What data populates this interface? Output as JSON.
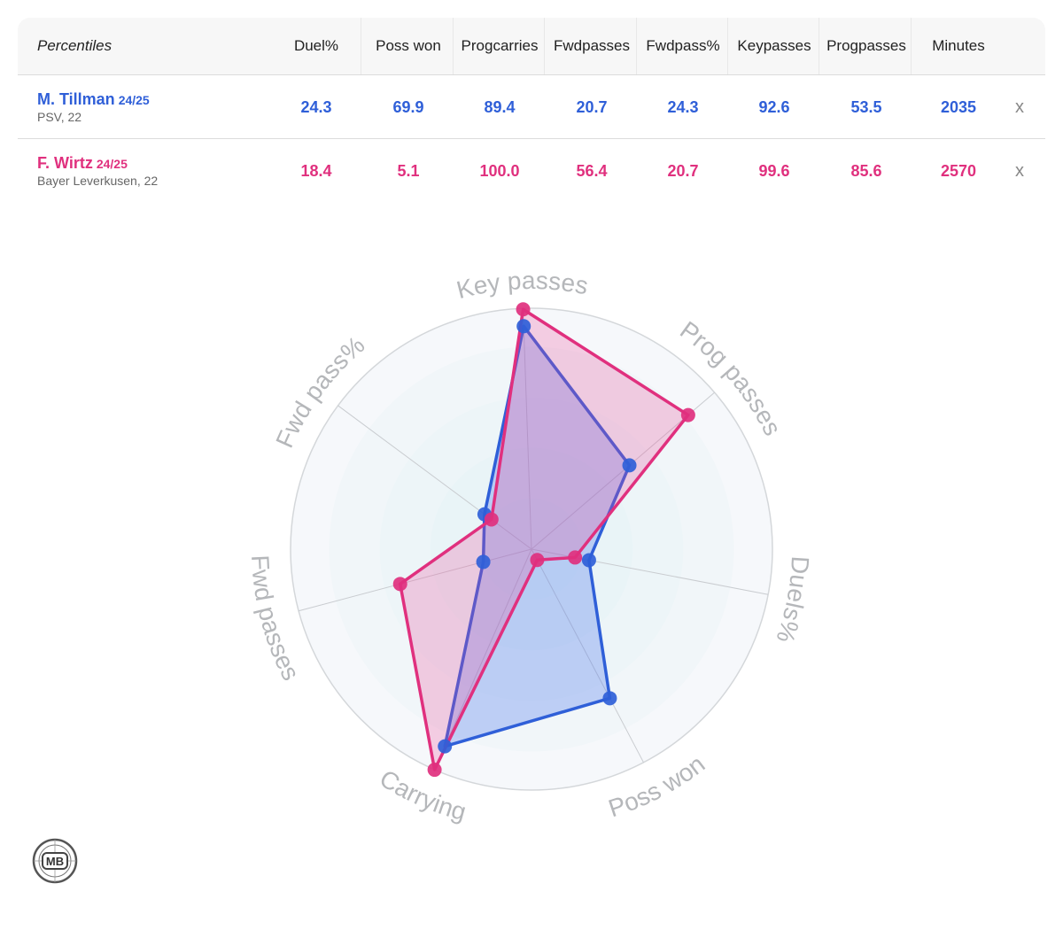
{
  "table": {
    "header_label": "Percentiles",
    "columns": [
      {
        "line1": "Duel%",
        "line2": ""
      },
      {
        "line1": "Poss won",
        "line2": ""
      },
      {
        "line1": "Prog",
        "line2": "carries"
      },
      {
        "line1": "Fwd",
        "line2": "passes"
      },
      {
        "line1": "Fwd",
        "line2": "pass%"
      },
      {
        "line1": "Key",
        "line2": "passes"
      },
      {
        "line1": "Prog",
        "line2": "passes"
      },
      {
        "line1": "Minutes",
        "line2": ""
      }
    ],
    "players": [
      {
        "name": "M. Tillman",
        "season": "24/25",
        "team": "PSV, 22",
        "color": "#2f5fd8",
        "values": [
          "24.3",
          "69.9",
          "89.4",
          "20.7",
          "24.3",
          "92.6",
          "53.5",
          "2035"
        ],
        "remove": "x"
      },
      {
        "name": "F. Wirtz",
        "season": "24/25",
        "team": "Bayer Leverkusen, 22",
        "color": "#e0307e",
        "values": [
          "18.4",
          "5.1",
          "100.0",
          "56.4",
          "20.7",
          "99.6",
          "85.6",
          "2570"
        ],
        "remove": "x"
      }
    ]
  },
  "chart_data": {
    "type": "radar",
    "axes": [
      "Key passes",
      "Prog passes",
      "Duels%",
      "Poss won",
      "Carrying",
      "Fwd passes",
      "Fwd pass%"
    ],
    "range": [
      0,
      100
    ],
    "series": [
      {
        "name": "M. Tillman",
        "color": "#2f5fd8",
        "values": [
          92.6,
          53.5,
          24.3,
          69.9,
          89.4,
          20.7,
          24.3
        ]
      },
      {
        "name": "F. Wirtz",
        "color": "#e0307e",
        "values": [
          99.6,
          85.6,
          18.4,
          5.1,
          100.0,
          56.4,
          20.7
        ]
      }
    ]
  },
  "logo": {
    "text": "MB"
  }
}
